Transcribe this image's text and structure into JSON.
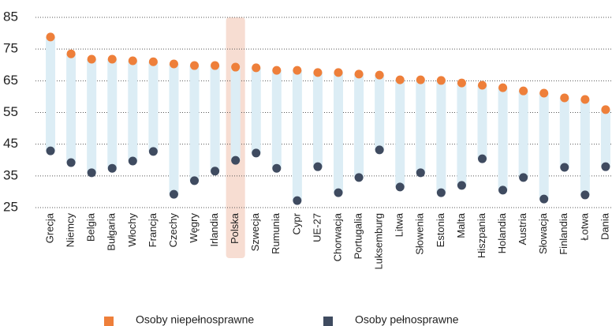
{
  "chart_data": {
    "type": "dumbbell",
    "categories": [
      "Grecja",
      "Niemcy",
      "Belgia",
      "Bułgaria",
      "Włochy",
      "Francja",
      "Czechy",
      "Węgry",
      "Irlandia",
      "Polska",
      "Szwecja",
      "Rumunia",
      "Cypr",
      "UE-27",
      "Chorwacja",
      "Portugalia",
      "Luksemburg",
      "Litwa",
      "Słowenia",
      "Estonia",
      "Malta",
      "Hiszpania",
      "Holandia",
      "Austria",
      "Słowacja",
      "Finlandia",
      "Łotwa",
      "Dania"
    ],
    "series": [
      {
        "name": "Osoby niepełnosprawne",
        "color": "#ee7f3a",
        "values": [
          78.8,
          73.5,
          71.8,
          71.8,
          71.3,
          71.0,
          70.3,
          69.8,
          69.8,
          69.3,
          69.1,
          68.3,
          68.3,
          67.6,
          67.6,
          67.1,
          66.8,
          65.3,
          65.3,
          65.1,
          64.3,
          63.6,
          62.8,
          61.8,
          61.1,
          59.6,
          59.1,
          55.9
        ]
      },
      {
        "name": "Osoby pełnosprawne",
        "color": "#3f4b60",
        "values": [
          42.9,
          39.2,
          36.0,
          37.4,
          39.7,
          42.7,
          29.2,
          33.5,
          36.5,
          39.9,
          42.2,
          37.4,
          27.2,
          37.9,
          29.7,
          34.5,
          43.2,
          31.5,
          36.0,
          29.7,
          32.0,
          40.4,
          30.5,
          34.5,
          27.7,
          37.7,
          29.0,
          37.9
        ]
      }
    ],
    "bar_color": "#dcedf5",
    "highlight": "Polska",
    "highlight_color": "#f7ddd2",
    "ylim": [
      25,
      85
    ],
    "yticks": [
      25,
      35,
      45,
      55,
      65,
      75,
      85
    ],
    "grid": true
  }
}
